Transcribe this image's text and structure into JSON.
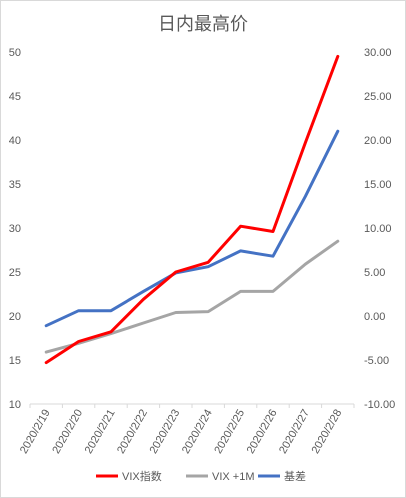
{
  "chart_data": {
    "type": "line",
    "title": "日内最高价",
    "x": [
      "2020/2/19",
      "2020/2/20",
      "2020/2/21",
      "2020/2/22",
      "2020/2/23",
      "2020/2/24",
      "2020/2/25",
      "2020/2/26",
      "2020/2/27",
      "2020/2/28"
    ],
    "left_axis": {
      "min": 10,
      "max": 50,
      "step": 5,
      "tick_labels": [
        "10",
        "15",
        "20",
        "25",
        "30",
        "35",
        "40",
        "45",
        "50"
      ]
    },
    "right_axis": {
      "min": -10,
      "max": 30,
      "step": 5,
      "tick_labels": [
        "-10.00",
        "-5.00",
        "0.00",
        "5.00",
        "10.00",
        "15.00",
        "20.00",
        "25.00",
        "30.00"
      ]
    },
    "series": [
      {
        "name": "VIX指数",
        "axis": "left",
        "color": "#ff0000",
        "values": [
          14.7,
          17.1,
          18.2,
          21.9,
          25.0,
          26.1,
          30.2,
          29.6,
          39.7,
          49.5
        ]
      },
      {
        "name": "VIX +1M",
        "axis": "left",
        "color": "#a5a5a5",
        "values": [
          15.9,
          16.9,
          18.0,
          19.2,
          20.4,
          20.5,
          22.8,
          22.8,
          25.9,
          28.5
        ]
      },
      {
        "name": "基差",
        "axis": "right",
        "color": "#4472c4",
        "values": [
          -1.1,
          0.6,
          0.6,
          2.8,
          4.9,
          5.6,
          7.4,
          6.8,
          13.6,
          21.0
        ]
      }
    ],
    "grid": false,
    "legend_position": "bottom"
  }
}
